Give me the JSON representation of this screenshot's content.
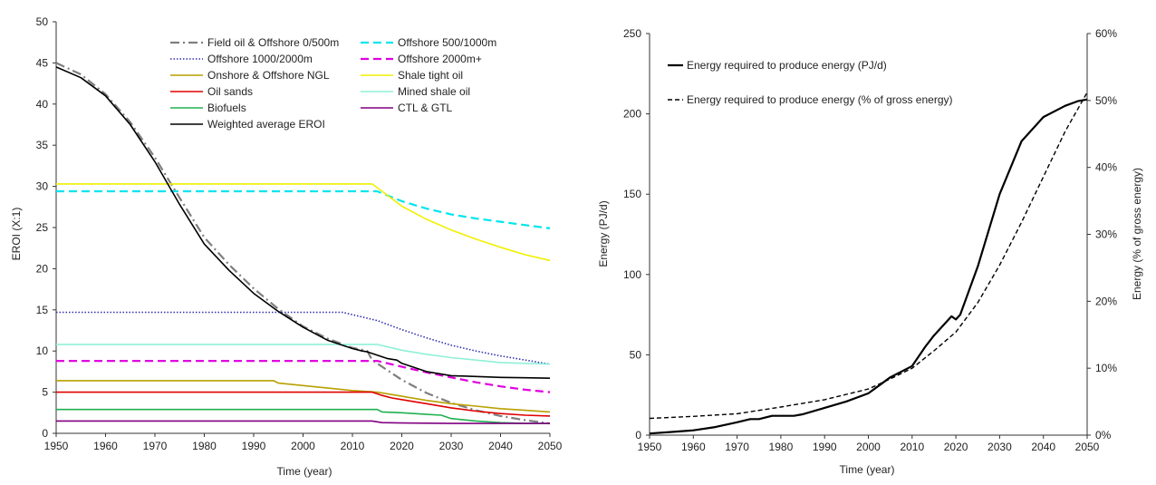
{
  "chart_data": [
    {
      "type": "line",
      "title": "",
      "xlabel": "Time (year)",
      "ylabel": "EROI (X:1)",
      "xlim": [
        1950,
        2050
      ],
      "ylim": [
        0,
        50
      ],
      "xticks": [
        1950,
        1960,
        1970,
        1980,
        1990,
        2000,
        2010,
        2020,
        2030,
        2040,
        2050
      ],
      "yticks": [
        0,
        5,
        10,
        15,
        20,
        25,
        30,
        35,
        40,
        45,
        50
      ],
      "grid": false,
      "legend": "top-right",
      "series": [
        {
          "name": "Field oil & Offshore 0/500m",
          "color": "#7f7f7f",
          "dash": "dashdot",
          "x": [
            1950,
            1955,
            1960,
            1965,
            1970,
            1975,
            1980,
            1985,
            1990,
            1995,
            2000,
            2005,
            2010,
            2013,
            2014,
            2020,
            2025,
            2030,
            2035,
            2040,
            2045,
            2050
          ],
          "y": [
            45,
            43.6,
            41.2,
            37.8,
            33.5,
            28.6,
            23.8,
            20.5,
            17.6,
            15.1,
            13.0,
            11.5,
            10.4,
            10.0,
            8.9,
            6.5,
            4.9,
            3.7,
            2.8,
            2.1,
            1.6,
            1.2
          ]
        },
        {
          "name": "Offshore 500/1000m",
          "color": "#00e5ee",
          "dash": "dash",
          "x": [
            1950,
            2015,
            2020,
            2025,
            2030,
            2035,
            2040,
            2045,
            2050
          ],
          "y": [
            29.4,
            29.4,
            28.2,
            27.3,
            26.6,
            26.1,
            25.7,
            25.3,
            24.9
          ]
        },
        {
          "name": "Offshore 1000/2000m",
          "color": "#3030b0",
          "dash": "dot",
          "x": [
            1950,
            2008,
            2015,
            2020,
            2025,
            2030,
            2035,
            2040,
            2045,
            2050
          ],
          "y": [
            14.7,
            14.7,
            13.7,
            12.6,
            11.6,
            10.7,
            10.0,
            9.4,
            8.9,
            8.4
          ]
        },
        {
          "name": "Offshore 2000m+",
          "color": "#e000e0",
          "dash": "dash",
          "x": [
            1950,
            2015,
            2020,
            2025,
            2030,
            2035,
            2040,
            2045,
            2050
          ],
          "y": [
            8.8,
            8.8,
            8.1,
            7.4,
            6.8,
            6.2,
            5.7,
            5.3,
            5.0
          ]
        },
        {
          "name": "Onshore & Offshore NGL",
          "color": "#b8a000",
          "dash": "solid",
          "x": [
            1950,
            1994,
            1995,
            2000,
            2005,
            2010,
            2015,
            2020,
            2025,
            2030,
            2035,
            2040,
            2045,
            2050
          ],
          "y": [
            6.4,
            6.4,
            6.1,
            5.8,
            5.5,
            5.2,
            5.0,
            4.5,
            4.0,
            3.6,
            3.3,
            3.0,
            2.8,
            2.6
          ]
        },
        {
          "name": "Shale tight oil",
          "color": "#f0f000",
          "dash": "solid",
          "x": [
            1950,
            2014,
            2016,
            2020,
            2025,
            2030,
            2035,
            2040,
            2045,
            2050
          ],
          "y": [
            30.3,
            30.3,
            29.4,
            27.6,
            26.0,
            24.7,
            23.6,
            22.6,
            21.7,
            21.0
          ]
        },
        {
          "name": "Oil sands",
          "color": "#e00000",
          "dash": "solid",
          "x": [
            1950,
            2014,
            2015,
            2016,
            2018,
            2020,
            2025,
            2030,
            2035,
            2040,
            2045,
            2050
          ],
          "y": [
            5.0,
            5.0,
            4.8,
            4.6,
            4.3,
            4.1,
            3.6,
            3.1,
            2.7,
            2.4,
            2.2,
            2.1
          ]
        },
        {
          "name": "Mined shale oil",
          "color": "#90f0d8",
          "dash": "solid",
          "x": [
            1950,
            2015,
            2020,
            2025,
            2030,
            2035,
            2040,
            2045,
            2050
          ],
          "y": [
            10.8,
            10.8,
            10.1,
            9.6,
            9.2,
            8.9,
            8.6,
            8.5,
            8.4
          ]
        },
        {
          "name": "Biofuels",
          "color": "#20b050",
          "dash": "solid",
          "x": [
            1950,
            2015,
            2016,
            2020,
            2025,
            2028,
            2030,
            2035,
            2040,
            2045,
            2050
          ],
          "y": [
            2.9,
            2.9,
            2.6,
            2.5,
            2.3,
            2.2,
            1.8,
            1.5,
            1.3,
            1.2,
            1.2
          ]
        },
        {
          "name": "CTL & GTL",
          "color": "#800080",
          "dash": "solid",
          "x": [
            1950,
            2014,
            2016,
            2020,
            2030,
            2040,
            2050
          ],
          "y": [
            1.5,
            1.5,
            1.3,
            1.25,
            1.2,
            1.2,
            1.2
          ]
        },
        {
          "name": "Weighted average EROI",
          "color": "#000000",
          "dash": "solid",
          "x": [
            1950,
            1955,
            1960,
            1965,
            1970,
            1975,
            1980,
            1985,
            1990,
            1995,
            2000,
            2005,
            2010,
            2012,
            2013,
            2015,
            2017,
            2019,
            2020,
            2025,
            2030,
            2035,
            2040,
            2045,
            2050
          ],
          "y": [
            44.5,
            43.2,
            41.0,
            37.5,
            33.0,
            27.8,
            23.0,
            19.8,
            17.0,
            14.8,
            12.9,
            11.3,
            10.3,
            10.0,
            9.9,
            9.5,
            9.1,
            8.9,
            8.5,
            7.5,
            7.0,
            6.9,
            6.8,
            6.75,
            6.7
          ]
        }
      ]
    },
    {
      "type": "line",
      "title": "",
      "xlabel": "Time (year)",
      "ylabel": "Energy (PJ/d)",
      "ylabel_right": "Energy  (% of  gross energy)",
      "xlim": [
        1950,
        2050
      ],
      "ylim": [
        0,
        250
      ],
      "ylim_right": [
        0,
        60
      ],
      "xticks": [
        1950,
        1960,
        1970,
        1980,
        1990,
        2000,
        2010,
        2020,
        2030,
        2040,
        2050
      ],
      "yticks": [
        0,
        50,
        100,
        150,
        200,
        250
      ],
      "yticks_right": [
        "0%",
        "10%",
        "20%",
        "30%",
        "40%",
        "50%",
        "60%"
      ],
      "grid": false,
      "legend": "top-left",
      "series": [
        {
          "name": "Energy required to produce energy (PJ/d)",
          "color": "#000000",
          "dash": "solid",
          "axis": "left",
          "x": [
            1950,
            1955,
            1960,
            1965,
            1970,
            1973,
            1975,
            1978,
            1980,
            1983,
            1985,
            1990,
            1995,
            2000,
            2003,
            2005,
            2010,
            2013,
            2015,
            2018,
            2019,
            2020,
            2021,
            2025,
            2030,
            2035,
            2040,
            2045,
            2048,
            2050
          ],
          "y": [
            1,
            2,
            3,
            5,
            8,
            10,
            10,
            12,
            12,
            12,
            13,
            17,
            21,
            26,
            32,
            36,
            43,
            55,
            62,
            71,
            74,
            72,
            75,
            105,
            150,
            183,
            198,
            205,
            208,
            209
          ]
        },
        {
          "name": "Energy required to produce energy (% of gross energy)",
          "color": "#000000",
          "dash": "dash",
          "axis": "right",
          "x": [
            1950,
            1960,
            1970,
            1980,
            1990,
            2000,
            2005,
            2010,
            2015,
            2020,
            2025,
            2030,
            2035,
            2040,
            2045,
            2050
          ],
          "y": [
            2.5,
            2.8,
            3.2,
            4.2,
            5.3,
            6.9,
            8.4,
            10.0,
            12.6,
            15.4,
            19.8,
            25.4,
            31.8,
            38.6,
            45.4,
            51.2
          ]
        }
      ]
    }
  ]
}
